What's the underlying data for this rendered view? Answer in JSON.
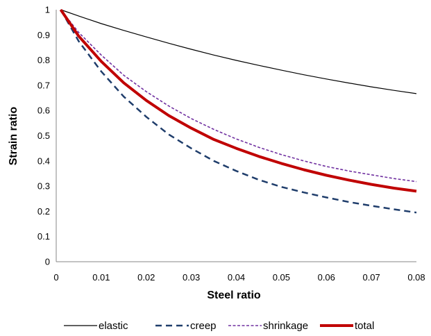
{
  "chart_data": {
    "type": "line",
    "title": "",
    "xlabel": "Steel ratio",
    "ylabel": "Strain ratio",
    "xlim": [
      0,
      0.08
    ],
    "ylim": [
      0,
      1
    ],
    "x_ticks": [
      "0",
      "0.01",
      "0.02",
      "0.03",
      "0.04",
      "0.05",
      "0.06",
      "0.07",
      "0.08"
    ],
    "y_ticks": [
      "0",
      "0.1",
      "0.2",
      "0.3",
      "0.4",
      "0.5",
      "0.6",
      "0.7",
      "0.8",
      "0.9",
      "1"
    ],
    "grid": false,
    "legend_position": "bottom",
    "x": [
      0.001,
      0.005,
      0.01,
      0.015,
      0.02,
      0.025,
      0.03,
      0.035,
      0.04,
      0.045,
      0.05,
      0.055,
      0.06,
      0.065,
      0.07,
      0.075,
      0.08
    ],
    "series": [
      {
        "name": "elastic",
        "color": "#000000",
        "style": "solid",
        "values": [
          1.0,
          0.975,
          0.945,
          0.918,
          0.892,
          0.867,
          0.843,
          0.82,
          0.799,
          0.779,
          0.76,
          0.742,
          0.725,
          0.709,
          0.694,
          0.68,
          0.667
        ]
      },
      {
        "name": "creep",
        "color": "#1f3d6b",
        "style": "dashed",
        "values": [
          1.0,
          0.875,
          0.755,
          0.655,
          0.575,
          0.505,
          0.45,
          0.4,
          0.36,
          0.325,
          0.297,
          0.275,
          0.255,
          0.237,
          0.222,
          0.208,
          0.195
        ]
      },
      {
        "name": "shrinkage",
        "color": "#7030a0",
        "style": "dotted",
        "values": [
          1.0,
          0.91,
          0.82,
          0.74,
          0.675,
          0.618,
          0.568,
          0.525,
          0.487,
          0.454,
          0.425,
          0.4,
          0.378,
          0.36,
          0.345,
          0.33,
          0.318
        ]
      },
      {
        "name": "total",
        "color": "#c00000",
        "style": "thick",
        "values": [
          1.0,
          0.895,
          0.795,
          0.71,
          0.64,
          0.58,
          0.53,
          0.485,
          0.45,
          0.418,
          0.39,
          0.365,
          0.343,
          0.324,
          0.307,
          0.292,
          0.28
        ]
      }
    ]
  }
}
